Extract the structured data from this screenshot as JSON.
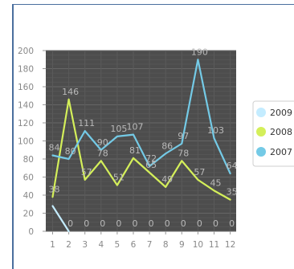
{
  "chart_data": {
    "type": "line",
    "title": "",
    "xlabel": "",
    "ylabel": "",
    "categories": [
      "1",
      "2",
      "3",
      "4",
      "5",
      "6",
      "7",
      "8",
      "9",
      "10",
      "11",
      "12"
    ],
    "ylim": [
      0,
      200
    ],
    "yticks": [
      0,
      20,
      40,
      60,
      80,
      100,
      120,
      140,
      160,
      180,
      200
    ],
    "grid": true,
    "legend_position": "right",
    "series": [
      {
        "name": "2009",
        "color": "#c4ecff",
        "values": [
          28,
          0,
          0,
          0,
          0,
          0,
          0,
          0,
          0,
          0,
          0,
          0
        ],
        "labels": [
          "",
          "0",
          "0",
          "0",
          "0",
          "0",
          "0",
          "0",
          "0",
          "0",
          "0",
          "0"
        ]
      },
      {
        "name": "2008",
        "color": "#d4ef5a",
        "values": [
          38,
          146,
          57,
          78,
          51,
          81,
          65,
          49,
          78,
          57,
          45,
          35
        ],
        "labels": [
          "38",
          "146",
          "57",
          "78",
          "51",
          "81",
          "65",
          "49",
          "78",
          "57",
          "45",
          "35"
        ]
      },
      {
        "name": "2007",
        "color": "#74cae6",
        "values": [
          84,
          80,
          111,
          90,
          105,
          107,
          72,
          86,
          97,
          190,
          103,
          64
        ],
        "labels": [
          "84",
          "80",
          "111",
          "90",
          "105",
          "107",
          "72",
          "86",
          "97",
          "190",
          "103",
          "64"
        ]
      }
    ]
  },
  "legend": {
    "items": [
      {
        "label": "2009",
        "color": "#c4ecff"
      },
      {
        "label": "2008",
        "color": "#d4ef5a"
      },
      {
        "label": "2007",
        "color": "#74cae6"
      }
    ]
  }
}
